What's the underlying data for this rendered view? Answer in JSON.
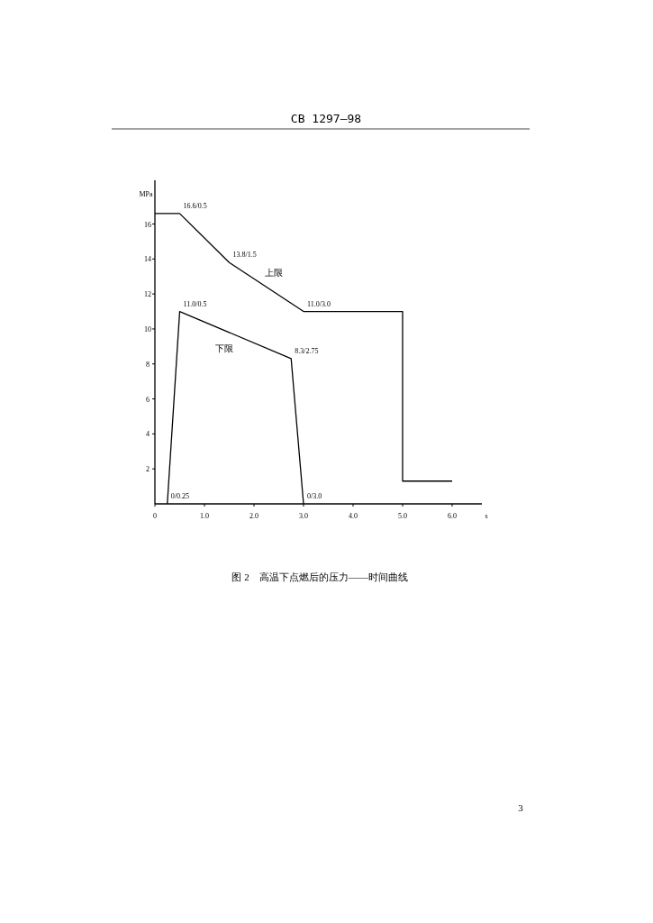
{
  "chart_data": {
    "type": "line",
    "xlabel": "s",
    "ylabel": "MPa",
    "xlim": [
      0,
      6.6
    ],
    "ylim": [
      0,
      18.5
    ],
    "xticks": [
      0,
      {
        "value": 1,
        "label": "1.0"
      },
      {
        "value": 2,
        "label": "2.0"
      },
      {
        "value": 3,
        "label": "3.0"
      },
      {
        "value": 4,
        "label": "4.0"
      },
      {
        "value": 5,
        "label": "5.0"
      },
      {
        "value": 6,
        "label": "6.0"
      }
    ],
    "yticks": [
      2,
      4,
      6,
      8,
      10,
      12,
      14,
      16
    ],
    "series": [
      {
        "name": "上限",
        "color": "#000000",
        "x": [
          0,
          0.5,
          1.5,
          3.0,
          5.0,
          5.0,
          6.0
        ],
        "values": [
          16.6,
          16.6,
          13.8,
          11.0,
          11.0,
          1.3,
          1.3
        ]
      },
      {
        "name": "下限",
        "color": "#000000",
        "x": [
          0.25,
          0.5,
          2.75,
          3.0
        ],
        "values": [
          0,
          11.0,
          8.3,
          0
        ]
      }
    ],
    "annotations": [
      "CB 1297—98",
      "图 2　高温下点燃后的压力——时间曲线",
      "3",
      {
        "text": "16.6/0.5",
        "x": 0.5,
        "y": 16.6
      },
      {
        "text": "13.8/1.5",
        "x": 1.5,
        "y": 13.8
      },
      {
        "text": "11.0/3.0",
        "x": 3.0,
        "y": 11.0
      },
      {
        "text": "11.0/0.5",
        "x": 0.5,
        "y": 11.0
      },
      {
        "text": "8.3/2.75",
        "x": 2.75,
        "y": 8.3
      },
      {
        "text": "0/0.25",
        "x": 0.25,
        "y": 0
      },
      {
        "text": "0/3.0",
        "x": 3.0,
        "y": 0
      }
    ],
    "marker": "none",
    "line_style": "solid"
  }
}
